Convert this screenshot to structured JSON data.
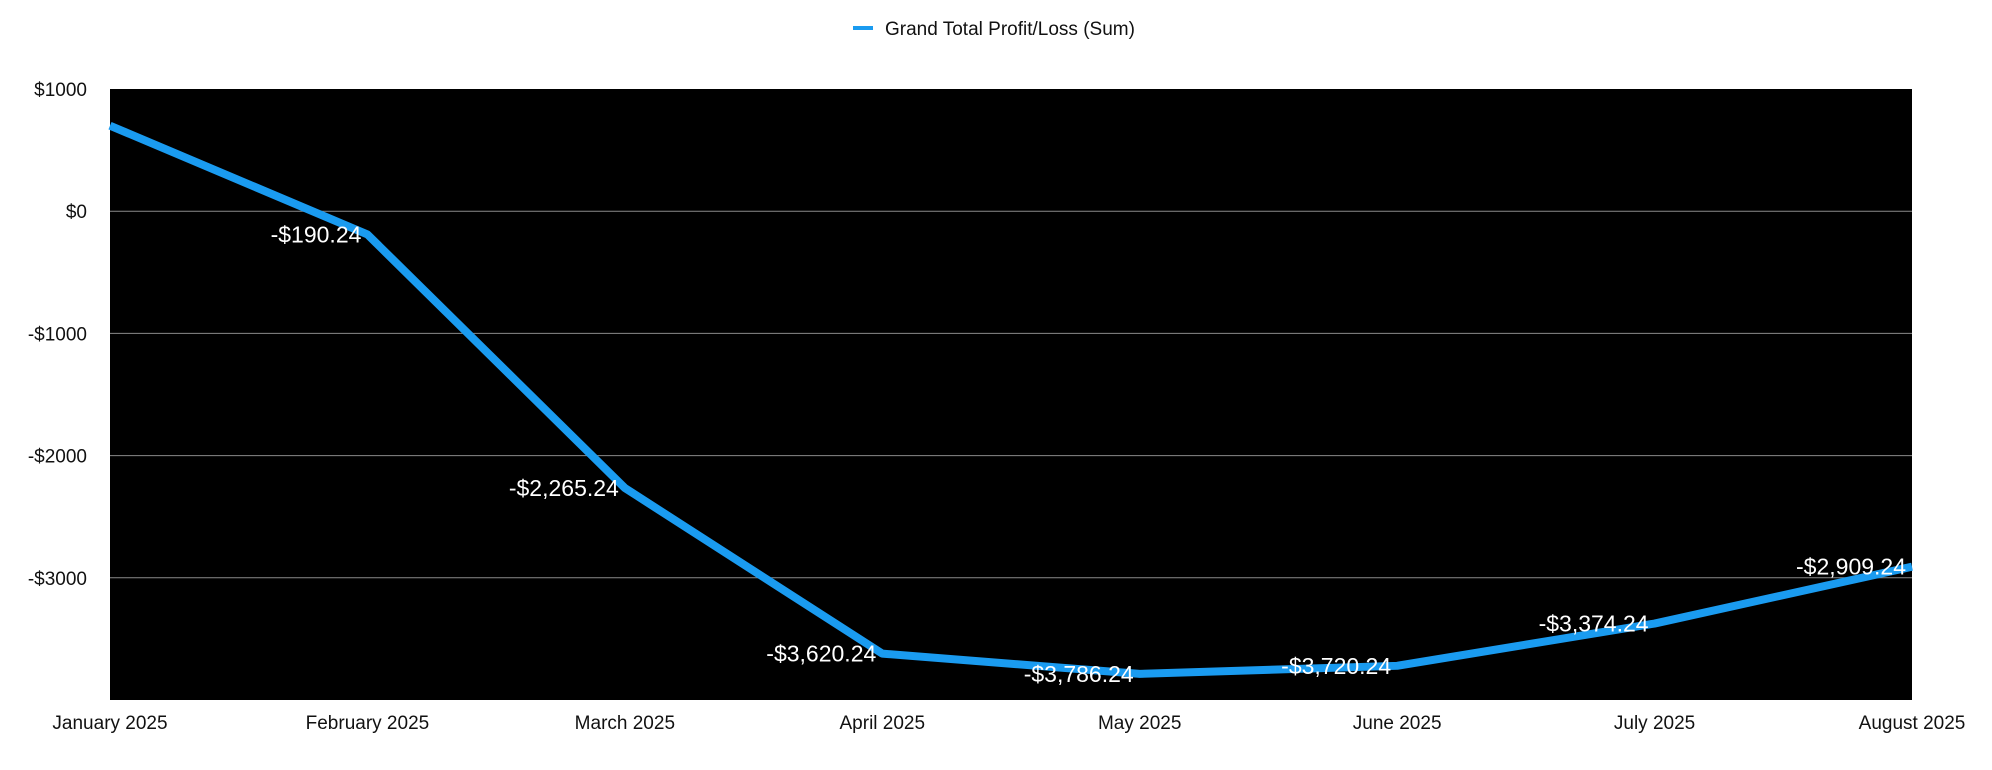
{
  "chart_data": {
    "type": "line",
    "title": "",
    "xlabel": "",
    "ylabel": "",
    "categories": [
      "January 2025",
      "February 2025",
      "March 2025",
      "April 2025",
      "May 2025",
      "June 2025",
      "July 2025",
      "August 2025"
    ],
    "series": [
      {
        "name": "Grand Total Profit/Loss (Sum)",
        "values": [
          700,
          -190.24,
          -2265.24,
          -3620.24,
          -3786.24,
          -3720.24,
          -3374.24,
          -2909.24
        ],
        "data_labels": [
          "",
          "-$190.24",
          "-$2,265.24",
          "-$3,620.24",
          "-$3,786.24",
          "-$3,720.24",
          "-$3,374.24",
          "-$2,909.24"
        ],
        "color": "#1a9bf0"
      }
    ],
    "ylim": [
      -4000,
      1000
    ],
    "yticks": [
      1000,
      0,
      -1000,
      -2000,
      -3000
    ],
    "ytick_labels": [
      "$1000",
      "$0",
      "-$1000",
      "-$2000",
      "-$3000"
    ],
    "grid": true,
    "legend_position": "top-center",
    "plot_background": "#000000",
    "gridline_color": "#8a8a8a"
  }
}
